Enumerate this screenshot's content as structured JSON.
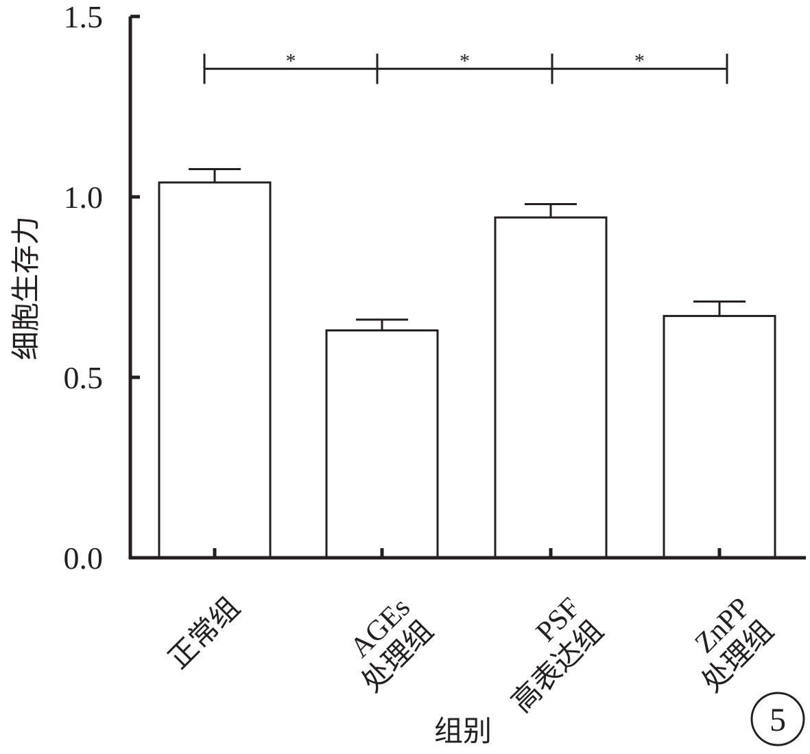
{
  "chart_data": {
    "type": "bar",
    "title": "",
    "xlabel": "组别",
    "ylabel": "细胞生存力",
    "ylim": [
      0,
      1.5
    ],
    "yticks": [
      "0.0",
      "0.5",
      "1.0",
      "1.5"
    ],
    "categories": [
      [
        "正常组"
      ],
      [
        "AGEs",
        "处理组"
      ],
      [
        "PSF",
        "高表达组"
      ],
      [
        "ZnPP",
        "处理组"
      ]
    ],
    "values": [
      1.04,
      0.63,
      0.943,
      0.67
    ],
    "errors": [
      0.037,
      0.03,
      0.037,
      0.04
    ],
    "significance": [
      {
        "from": 0,
        "to": 1,
        "label": "*"
      },
      {
        "from": 1,
        "to": 2,
        "label": "*"
      },
      {
        "from": 2,
        "to": 3,
        "label": "*"
      }
    ],
    "significance_level": 1.355,
    "panel_label": "5",
    "grid": false,
    "colors": {
      "bar_fill": "#ffffff",
      "stroke": "#231f20"
    }
  }
}
